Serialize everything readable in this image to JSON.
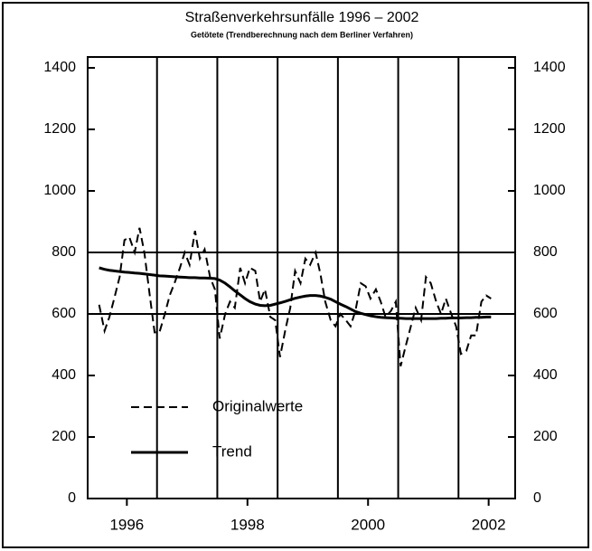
{
  "chart_data": {
    "type": "line",
    "title": "Straßenverkehrsunfälle 1996 – 2002",
    "subtitle": "Getötete (Trendberechnung nach dem Berliner Verfahren)",
    "x": [
      1996.04,
      1996.13,
      1996.21,
      1996.29,
      1996.38,
      1996.46,
      1996.54,
      1996.63,
      1996.71,
      1996.79,
      1996.88,
      1996.96,
      1997.04,
      1997.13,
      1997.21,
      1997.29,
      1997.38,
      1997.46,
      1997.54,
      1997.63,
      1997.71,
      1997.79,
      1997.88,
      1997.96,
      1998.04,
      1998.13,
      1998.21,
      1998.29,
      1998.38,
      1998.46,
      1998.54,
      1998.63,
      1998.71,
      1998.79,
      1998.88,
      1998.96,
      1999.04,
      1999.13,
      1999.21,
      1999.29,
      1999.38,
      1999.46,
      1999.54,
      1999.63,
      1999.71,
      1999.79,
      1999.88,
      1999.96,
      2000.04,
      2000.13,
      2000.21,
      2000.29,
      2000.38,
      2000.46,
      2000.54,
      2000.63,
      2000.71,
      2000.79,
      2000.88,
      2000.96,
      2001.04,
      2001.13,
      2001.21,
      2001.29,
      2001.38,
      2001.46,
      2001.54,
      2001.63,
      2001.71,
      2001.79,
      2001.88,
      2001.96,
      2002.04,
      2002.13,
      2002.21,
      2002.29,
      2002.38,
      2002.46,
      2002.54
    ],
    "series": [
      {
        "name": "Originalwerte",
        "color": "#000000",
        "dashed": true,
        "values": [
          630,
          545,
          590,
          650,
          720,
          840,
          850,
          800,
          880,
          800,
          660,
          540,
          540,
          600,
          660,
          700,
          750,
          800,
          760,
          870,
          780,
          810,
          720,
          680,
          520,
          600,
          640,
          620,
          750,
          700,
          750,
          740,
          640,
          680,
          590,
          580,
          460,
          550,
          620,
          740,
          700,
          780,
          760,
          800,
          730,
          640,
          580,
          560,
          600,
          580,
          560,
          610,
          700,
          690,
          650,
          680,
          640,
          590,
          610,
          640,
          430,
          500,
          560,
          620,
          580,
          720,
          700,
          640,
          600,
          650,
          600,
          560,
          470,
          480,
          530,
          530,
          640,
          660,
          650
        ]
      },
      {
        "name": "Trend",
        "color": "#000000",
        "dashed": false,
        "values": [
          750,
          745,
          742,
          740,
          738,
          736,
          735,
          733,
          732,
          730,
          728,
          726,
          724,
          723,
          722,
          721,
          720,
          719,
          718,
          718,
          717,
          717,
          716,
          715,
          710,
          700,
          688,
          675,
          662,
          650,
          640,
          632,
          628,
          627,
          628,
          632,
          636,
          641,
          646,
          651,
          655,
          658,
          660,
          660,
          658,
          654,
          648,
          640,
          632,
          624,
          616,
          608,
          602,
          598,
          594,
          591,
          589,
          588,
          587,
          586,
          586,
          585,
          585,
          585,
          585,
          585,
          585,
          585,
          586,
          586,
          587,
          587,
          587,
          588,
          588,
          589,
          589,
          590,
          590
        ]
      }
    ],
    "xlim": [
      1995.85,
      2002.94
    ],
    "xticks": [
      {
        "value": 1996.5,
        "label": "1996"
      },
      {
        "value": 1998.5,
        "label": "1998"
      },
      {
        "value": 2000.5,
        "label": "2000"
      },
      {
        "value": 2002.5,
        "label": "2002"
      }
    ],
    "xgrid": [
      1997,
      1998,
      1999,
      2000,
      2001,
      2002
    ],
    "ylim": [
      0,
      1400
    ],
    "yticks": [
      0,
      200,
      400,
      600,
      800,
      1000,
      1200,
      1400
    ],
    "y2lim": [
      0,
      1400
    ],
    "y2ticks": [
      0,
      200,
      400,
      600,
      800,
      1000,
      1200,
      1400
    ],
    "ygrid": [
      600,
      800
    ]
  }
}
